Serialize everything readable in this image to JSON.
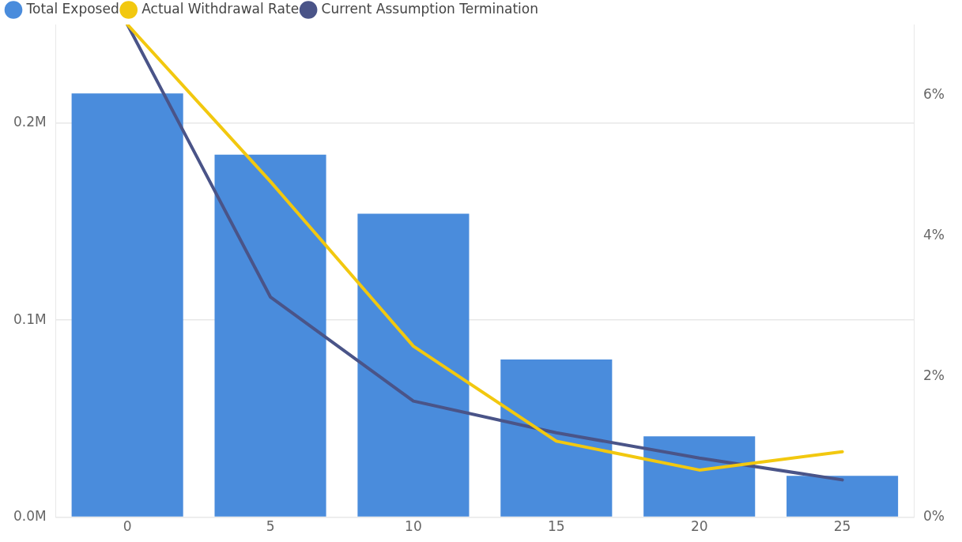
{
  "chart_data": {
    "type": "bar",
    "categories": [
      "0",
      "5",
      "10",
      "15",
      "20",
      "25"
    ],
    "series": [
      {
        "name": "Total Exposed",
        "color": "#4a8cdc",
        "values": [
          215000,
          184000,
          154000,
          80000,
          41000,
          21000
        ]
      },
      {
        "name": "Actual Withdrawal Rate",
        "type": "line",
        "axis": "y2",
        "color": "#f2c80f",
        "values": [
          7,
          4.77,
          2.43,
          1.08,
          0.67,
          0.93
        ]
      },
      {
        "name": "Current Assumption Termination",
        "type": "line",
        "axis": "y2",
        "color": "#4a5488",
        "values": [
          7,
          3.13,
          1.65,
          1.2,
          0.84,
          0.53
        ]
      }
    ],
    "ylim": [
      0,
      250000
    ],
    "yticks": [
      {
        "value": 0,
        "label": "0.0M"
      },
      {
        "value": 100000,
        "label": "0.1M"
      },
      {
        "value": 200000,
        "label": "0.2M"
      }
    ],
    "y2lim": [
      0,
      7
    ],
    "y2ticks": [
      {
        "value": 0,
        "label": "0%"
      },
      {
        "value": 2,
        "label": "2%"
      },
      {
        "value": 4,
        "label": "4%"
      },
      {
        "value": 6,
        "label": "6%"
      }
    ],
    "grid": "y",
    "legend": "top left",
    "marker": "none"
  }
}
